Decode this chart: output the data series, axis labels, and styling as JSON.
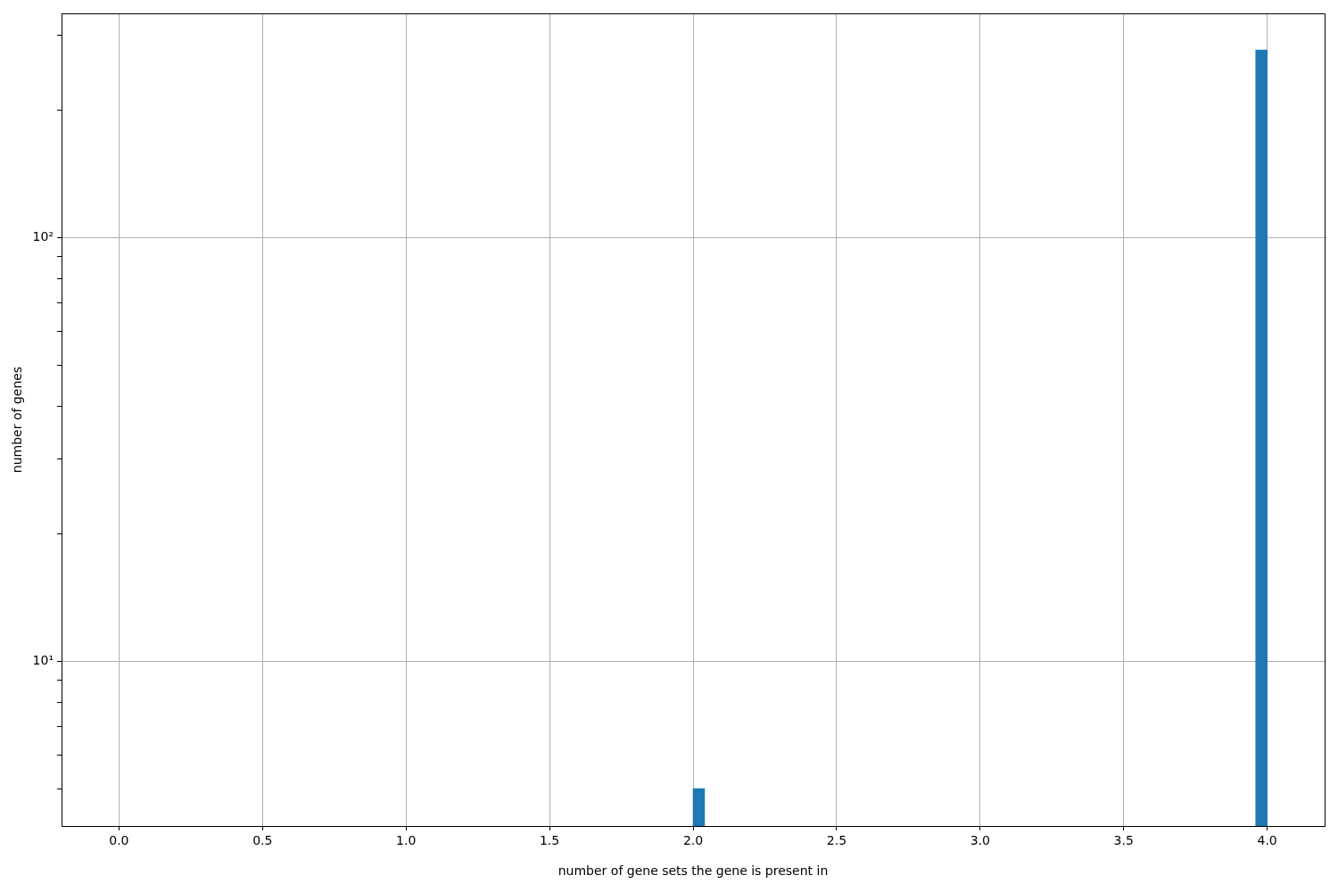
{
  "chart_data": {
    "type": "histogram",
    "xlabel": "number of gene sets the gene is present in",
    "ylabel": "number of genes",
    "bins": [
      0,
      0.04,
      0.08,
      0.12,
      0.16,
      0.2,
      0.24,
      0.28,
      0.32,
      0.36,
      0.4,
      0.44,
      0.48,
      0.52,
      0.56,
      0.6,
      0.64,
      0.68,
      0.72,
      0.76,
      0.8,
      0.84,
      0.88,
      0.92,
      0.96,
      1,
      1.04,
      1.08,
      1.12,
      1.16,
      1.2,
      1.24,
      1.28,
      1.32,
      1.36,
      1.4,
      1.44,
      1.48,
      1.52,
      1.56,
      1.6,
      1.64,
      1.68,
      1.72,
      1.76,
      1.8,
      1.84,
      1.88,
      1.92,
      1.96,
      2,
      2.04,
      2.08,
      2.12,
      2.16,
      2.2,
      2.24,
      2.28,
      2.32,
      2.36,
      2.4,
      2.44,
      2.48,
      2.52,
      2.56,
      2.6,
      2.64,
      2.68,
      2.72,
      2.76,
      2.8,
      2.84,
      2.88,
      2.92,
      2.96,
      3,
      3.04,
      3.08,
      3.12,
      3.16,
      3.2,
      3.24,
      3.28,
      3.32,
      3.36,
      3.4,
      3.44,
      3.48,
      3.52,
      3.56,
      3.6,
      3.64,
      3.68,
      3.72,
      3.76,
      3.8,
      3.84,
      3.88,
      3.92,
      3.96,
      4
    ],
    "values": [
      null,
      null,
      null,
      null,
      null,
      null,
      null,
      null,
      null,
      null,
      null,
      null,
      null,
      null,
      null,
      null,
      null,
      null,
      null,
      null,
      null,
      null,
      null,
      null,
      null,
      null,
      null,
      null,
      null,
      null,
      null,
      null,
      null,
      null,
      null,
      null,
      null,
      null,
      null,
      null,
      null,
      null,
      null,
      null,
      null,
      null,
      null,
      null,
      null,
      null,
      5,
      null,
      null,
      null,
      null,
      null,
      null,
      null,
      null,
      null,
      null,
      null,
      null,
      null,
      null,
      null,
      null,
      null,
      null,
      null,
      null,
      null,
      null,
      null,
      null,
      null,
      null,
      null,
      null,
      null,
      null,
      null,
      null,
      null,
      null,
      null,
      null,
      null,
      null,
      null,
      null,
      null,
      null,
      null,
      null,
      null,
      null,
      null,
      null,
      277
    ],
    "color": "#1f77b4",
    "xlim": [
      -0.2,
      4.2
    ],
    "xticks": [
      {
        "value": 0,
        "label": "0.0"
      },
      {
        "value": 0.5,
        "label": "0.5"
      },
      {
        "value": 1,
        "label": "1.0"
      },
      {
        "value": 1.5,
        "label": "1.5"
      },
      {
        "value": 2,
        "label": "2.0"
      },
      {
        "value": 2.5,
        "label": "2.5"
      },
      {
        "value": 3,
        "label": "3.0"
      },
      {
        "value": 3.5,
        "label": "3.5"
      },
      {
        "value": 4,
        "label": "4.0"
      }
    ],
    "ylim": [
      4.08,
      338
    ],
    "yticks": [
      {
        "value": 5,
        "label": null
      },
      {
        "value": 6,
        "label": null
      },
      {
        "value": 7,
        "label": null
      },
      {
        "value": 8,
        "label": null
      },
      {
        "value": 9,
        "label": null
      },
      {
        "value": 10,
        "label": "10¹"
      },
      {
        "value": 20,
        "label": null
      },
      {
        "value": 30,
        "label": null
      },
      {
        "value": 40,
        "label": null
      },
      {
        "value": 50,
        "label": null
      },
      {
        "value": 60,
        "label": null
      },
      {
        "value": 70,
        "label": null
      },
      {
        "value": 80,
        "label": null
      },
      {
        "value": 90,
        "label": null
      },
      {
        "value": 100,
        "label": "10²"
      },
      {
        "value": 200,
        "label": null
      },
      {
        "value": 300,
        "label": null
      }
    ],
    "log": true,
    "grid": true
  }
}
